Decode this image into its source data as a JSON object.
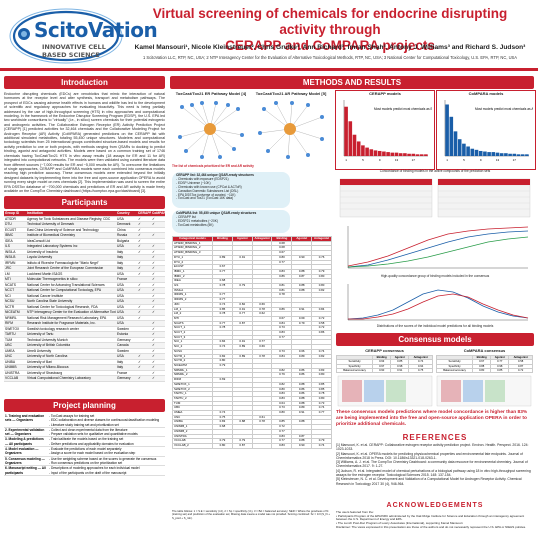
{
  "header": {
    "logo_name": "ScitoVation",
    "logo_tagline": "INNOVATIVE CELL BASED SCIENCE",
    "title_line1": "Virtual screening of chemicals for endocrine disrupting activity through",
    "title_line2": "CERAPP and CoMPARA projects",
    "authors": "Kamel Mansouri¹, Nicole Kleinstreuer², Chris Grulke³, Ann Richard³, Imran Shah³, Antony J. Williams³ and Richard S. Judson³",
    "affiliations": "1 ScitoVation LLC, RTP, NC, USA;  2 NTP Interagency Center for the Evaluation of Alternative Toxicological Methods, RTP, NC, USA;  3 National Center for Computational Toxicology, U.S. EPA, RTP, NC, USA"
  },
  "sections": {
    "intro": "Introduction",
    "participants": "Participants",
    "planning": "Project planning",
    "methods": "METHODS AND RESULTS",
    "consensus": "Consensus models",
    "references": "REFERENCES",
    "ack": "ACKNOWLEDGEMENTS"
  },
  "intro_text": "Endocrine disrupting chemicals (EDCs) are xenobiotics that mimic the interaction of natural hormones at the receptor level and alter synthesis, transport and metabolism pathways. The prospect of EDCs causing adverse health effects in humans and wildlife has led to the development of scientific and regulatory approaches for evaluating bioactivity. This need is being partially addressed by the use of high-throughput screening (HTS) in vitro approaches and computational modeling. In the framework of the Endocrine Disruptor Screening Program (EDSP), the U.S. EPA led two worldwide consortiums to \"virtually\" (i.e., in silico) screen chemicals for their potential estrogenic and androgenic activities. The Collaborative Estrogen Receptor (ER) Activity Prediction Project (CERAPP) [1] predicted activities for 32,464 chemicals and the Collaborative Modeling Project for Androgen Receptor (AR) Activity (CoMPARA) generated predictions on the CERAPP list with additional simulated metabolites, totaling 55,450 unique structures. Modelers and computational toxicology scientists from 25 international groups contributed structure-based models and results for activity prediction to one or both projects, with methods ranging from QSARs to docking to predict binding, agonist and antagonist activities. Models were based on a common training set of 1746 chemicals having ToxCast/Tox21 HTS in vitro assay results (18 assays for ER and 11 for AR) integrated into computational networks. The models were then validated using curated literature data from different sources (~7,000 results for ER and ~5,000 results for AR). To overcome the limitations of single approaches, CERAPP and CoMPARA models were each combined into consensus models reaching high predictive accuracy. These consensus models were extended beyond the initially designed datasets by implementing them into the free and open-source application OPERA to avoid running every single model on new chemicals [2]. This implementation was used to screen the entire EPA DSSTox database of ~700,000 chemicals and predictions of ER and AR activity is made freely available on the CompTox Chemistry dashboard (https://comptox.epa.gov/dashboard) [3].",
  "participants": {
    "headers": [
      "Group ID",
      "Institution",
      "Country",
      "CERAPP",
      "CoMPARA"
    ],
    "rows": [
      [
        "ATSDR",
        "Agency for Toxic Substances and Disease Registry, CDC",
        "USA",
        "✓",
        "✓"
      ],
      [
        "DTU",
        "Technical University of Denmark",
        "Denmark",
        "✓",
        "✓"
      ],
      [
        "ECUST",
        "East China University of Science and Technology",
        "China",
        "✓",
        ""
      ],
      [
        "IBMC",
        "Institute of Biomedical Chemistry",
        "Russia",
        "✓",
        "✓"
      ],
      [
        "IDEA",
        "IdeaConsult Ltd",
        "Bulgaria",
        "✓",
        ""
      ],
      [
        "ILS",
        "Integrated Laboratory Systems Inc",
        "USA",
        "✓",
        "✓"
      ],
      [
        "INSILA",
        "University of Insubria",
        "Italy",
        "✓",
        "✓"
      ],
      [
        "INSILB",
        "Loyola University",
        "Italy",
        "",
        "✓"
      ],
      [
        "IRFMN",
        "Istituto di Ricerche Farmacologiche \"Mario Negri\"",
        "Italy",
        "✓",
        "✓"
      ],
      [
        "JRC",
        "Joint Research Centre of the European Commission",
        "Italy",
        "✓",
        "✓"
      ],
      [
        "LM",
        "Lockheed Martin IS&GS",
        "USA",
        "✓",
        "✓"
      ],
      [
        "MTI",
        "Molecular Thermogenetics in silico",
        "France",
        "",
        "✓"
      ],
      [
        "NCATS",
        "National Center for Advancing Translational Sciences",
        "USA",
        "✓",
        "✓"
      ],
      [
        "NCCT",
        "National Center for Computational Toxicology, EPA",
        "USA",
        "✓",
        "✓"
      ],
      [
        "NCI",
        "National Cancer Institute",
        "USA",
        "",
        "✓"
      ],
      [
        "NCSU",
        "North Carolina State University",
        "USA",
        "",
        "✓"
      ],
      [
        "NCTR",
        "National Center for Toxicological Research, FDA",
        "USA",
        "✓",
        "✓"
      ],
      [
        "NICEATM",
        "NTP Interagency Center for the Evaluation of Alternative Toxicological Methods",
        "USA",
        "✓",
        "✓"
      ],
      [
        "NRMRL",
        "National Risk Management Research Laboratory, EPA",
        "USA",
        "✓",
        ""
      ],
      [
        "RIFM",
        "Research Institute for Fragrance Materials, Inc.",
        "USA",
        "",
        "✓"
      ],
      [
        "SWETOX",
        "Swedish toxicology research center",
        "Sweden",
        "",
        "✓"
      ],
      [
        "TARTU",
        "University of Tartu",
        "Estonia",
        "",
        "✓"
      ],
      [
        "TUM",
        "Technical University Munich",
        "Germany",
        "",
        "✓"
      ],
      [
        "UBC",
        "University of British Columbia",
        "Canada",
        "",
        "✓"
      ],
      [
        "UMEA",
        "Umeå University",
        "Sweden",
        "",
        "✓"
      ],
      [
        "UNC",
        "University of North Carolina",
        "USA",
        "✓",
        "✓"
      ],
      [
        "UNIBA",
        "University of Bari",
        "Italy",
        "✓",
        "✓"
      ],
      [
        "UNIMIB",
        "University of Milano-Bicocca",
        "Italy",
        "✓",
        "✓"
      ],
      [
        "UNISTRA",
        "University of Strasbourg",
        "France",
        "",
        "✓"
      ],
      [
        "VCCLAB",
        "Virtual Computational Chemistry Laboratory",
        "Germany",
        "✓",
        "✓"
      ]
    ]
  },
  "planning": {
    "headers": [
      "",
      ""
    ],
    "rows": [
      [
        "1. Training and evaluation sets — Organizers",
        "- ToxCast assays for training set<br>- EDC collaboration and diverse classes for continuous/classification modeling<br>- Literature study training set and prioritization set"
      ],
      [
        "2. Experimental validation set — Organizers",
        "- Collect and clean experimental data from the literature<br>- Prepare validation sets for qualitative and quantitative models"
      ],
      [
        "3. Modeling & predictions — All participants",
        "- Train/calibrate the models based on the training set<br>- Deliver predictions and applicability domains for evaluation"
      ],
      [
        "4. Model evaluation — Organizers",
        "- Evaluate the predictions of each model separately<br>- Assign a score for each model based on the evaluation step"
      ],
      [
        "5. Consensus modeling — Organizers",
        "- Use the weighting scheme based on the scores to generate the consensus<br>- Run consensus predictions on the prioritization set"
      ],
      [
        "6. Manuscript writing — All participants",
        "- Descriptions of modeling approaches for each individual model<br>- Input of the participants on the draft of the manuscript"
      ]
    ]
  },
  "methods": {
    "network_er_title": "ToxCast/Tox21 ER Pathway Model [4]",
    "network_ar_title": "ToxCast/Tox21 AR Pathway Model [5]",
    "network_caption": "The list of chemicals prioritized for ER and AR activity",
    "cerapp_list": [
      "CERAPP list: 32,464 unique QSAR-ready structures",
      "- Chemicals with exposure (EDSP21)",
      "- EDSP Universe (~10K)",
      "- Chemicals with known use (CPCat & ACToR)",
      "- Canadian Domestic Substances List (DSL)",
      "- EPA DSSTox (universe of curated, ~11K)",
      "- ToxCast and Tox21 (ToxCast 16K data)"
    ],
    "compara_list": [
      "CoMPARA list: 55,450 unique QSAR-ready structures",
      "- CERAPP list",
      "- EDSP21 metabolites (~20K)",
      "- ToxCast metabolites (5K)"
    ],
    "cat_headers": [
      "Categorical models",
      "Binding",
      "Agonist",
      "Antagonist",
      "Binding",
      "Agonist",
      "Antagonist"
    ],
    "cat_rows": [
      [
        "ATSDR_BINDING_1",
        "",
        "",
        "",
        "0.68",
        "",
        ""
      ],
      [
        "ATSDR_BINDING_2",
        "",
        "",
        "",
        "0.68",
        "",
        ""
      ],
      [
        "ATSDR_BINDING_3",
        "",
        "",
        "",
        "0.67",
        "",
        ""
      ],
      [
        "DTU_1",
        "0.89",
        "0.91",
        "",
        "0.80",
        "0.90",
        "0.76"
      ],
      [
        "DTU_2",
        "",
        "",
        "",
        "0.77",
        "",
        ""
      ],
      [
        "ECUST",
        "0.67",
        "",
        "",
        "",
        "",
        ""
      ],
      [
        "IBMC_1",
        "0.77",
        "",
        "",
        "0.83",
        "0.88",
        "0.79"
      ],
      [
        "IBMC_2",
        "",
        "",
        "",
        "0.86",
        "0.87",
        "0.80"
      ],
      [
        "IDEA",
        "0.68",
        "",
        "",
        "",
        "",
        ""
      ],
      [
        "ILS",
        "0.78",
        "0.79",
        "",
        "0.81",
        "0.88",
        "0.80"
      ],
      [
        "INSILA",
        "",
        "",
        "",
        "0.81",
        "0.88",
        "0.82"
      ],
      [
        "IRFMN_1",
        "0.77",
        "",
        "",
        "0.78",
        "",
        ""
      ],
      [
        "IRFMN_2",
        "0.77",
        "",
        "",
        "",
        "",
        ""
      ],
      [
        "JRC",
        "0.74",
        "0.82",
        "0.66",
        "",
        "",
        ""
      ],
      [
        "LM_1",
        "0.85",
        "0.91",
        "0.78",
        "0.86",
        "0.91",
        "0.84"
      ],
      [
        "LM_2",
        "0.78",
        "0.77",
        "0.62",
        "",
        "",
        ""
      ],
      [
        "MTI",
        "",
        "",
        "",
        "0.67",
        "0.69",
        "0.72"
      ],
      [
        "NCATS",
        "0.77",
        "0.87",
        "",
        "0.84",
        "0.79",
        "0.58"
      ],
      [
        "NCCT_1",
        "0.78",
        "",
        "",
        "0.73",
        "",
        "0.72"
      ],
      [
        "NCCT_2",
        "",
        "",
        "",
        "0.83",
        "",
        "0.86"
      ],
      [
        "NCCT_3",
        "",
        "",
        "",
        "0.77",
        "",
        ""
      ],
      [
        "NCI_1",
        "0.84",
        "0.91",
        "0.77",
        "",
        "",
        ""
      ],
      [
        "NCI_2",
        "0.74",
        "0.89",
        "0.66",
        "",
        "",
        ""
      ],
      [
        "NCSU",
        "",
        "",
        "",
        "0.73",
        "0.66",
        "0.74"
      ],
      [
        "NCTR_1",
        "0.82",
        "0.89",
        "0.78",
        "0.84",
        "0.89",
        "0.82"
      ],
      [
        "NCTR_2",
        "0.80",
        "",
        "",
        "",
        "",
        ""
      ],
      [
        "NICEATM",
        "0.79",
        "",
        "",
        "",
        "",
        ""
      ],
      [
        "NRMRL_1",
        "",
        "",
        "",
        "0.82",
        "0.86",
        "0.83"
      ],
      [
        "NRMRL_2",
        "",
        "",
        "",
        "0.79",
        "0.86",
        "0.80"
      ],
      [
        "RIFM",
        "0.69",
        "",
        "",
        "",
        "",
        ""
      ],
      [
        "SWETOX_1",
        "",
        "",
        "",
        "0.82",
        "0.88",
        "0.85"
      ],
      [
        "SWETOX_2",
        "",
        "",
        "",
        "0.80",
        "0.86",
        "0.85"
      ],
      [
        "TARTU_1",
        "",
        "",
        "",
        "0.83",
        "0.86",
        "0.78"
      ],
      [
        "TARTU_2",
        "",
        "",
        "",
        "0.83",
        "0.88",
        "0.80"
      ],
      [
        "TUM",
        "",
        "",
        "",
        "0.64",
        "0.88",
        "0.73"
      ],
      [
        "UBC",
        "",
        "",
        "",
        "0.73",
        "0.89",
        "0.74"
      ],
      [
        "UMEA",
        "0.74",
        "",
        "",
        "0.80",
        "0.91",
        "0.77"
      ],
      [
        "UNC",
        "0.75",
        "",
        "0.61",
        "",
        "",
        ""
      ],
      [
        "UNIBA",
        "0.83",
        "0.88",
        "0.78",
        "0.85",
        "0.88",
        ""
      ],
      [
        "UNIMIB_1",
        "0.68",
        "",
        "",
        "0.72",
        "",
        ""
      ],
      [
        "UNIMIB_2",
        "",
        "",
        "",
        "0.77",
        "",
        ""
      ],
      [
        "UNISTRA",
        "",
        "",
        "",
        "0.83",
        "0.87",
        ""
      ],
      [
        "VCCLAB",
        "0.79",
        "0.79",
        "",
        "0.77",
        "0.88",
        "0.79"
      ],
      [
        "VCCLAB_2",
        "0.80",
        "0.87",
        "",
        "0.83",
        "0.90",
        "0.74"
      ]
    ],
    "cat_footnote": "The table follows: 1 = S.E = sensitivity (×2), 2 = Sp = specificity (×1), 3 = BA = balanced accuracy; NER = Where the goodness of fit (training set) and prediction of the evaluation set; Missing data means a model was not provided. Scoring combined: Sc = 1/3 (S_fit + S_pred + S_rob).",
    "cerapp_hist_title": "CERAPP models",
    "compara_hist_title": "CoMPARA models",
    "hist_note_er": "Most models predict most chemicals as ER non-binders",
    "hist_note_ar": "Most models predict most chemicals as AR non-binders",
    "concordance_caption": "Concordance of binding models in the active compounds of the prediction sets",
    "chem_dist_caption": "Distributions of the number of models with positive predictions",
    "uncertainty_caption": "High-quality concordance group of binding models included in the consensus",
    "dist_caption": "Distributions of the scores of the individual model predictions for all binding models",
    "cerapp_pct_note": "57% of the chemicals predicted as binders"
  },
  "chart_data": [
    {
      "type": "bar",
      "title": "CERAPP models",
      "categories": [
        "1",
        "2",
        "3",
        "4",
        "5",
        "6",
        "7",
        "8",
        "9",
        "10",
        "11",
        "12",
        "13",
        "14",
        "15",
        "16",
        "17",
        "18",
        "19",
        "20"
      ],
      "values": [
        88,
        62,
        38,
        26,
        19,
        15,
        12,
        10,
        9,
        8,
        7,
        6,
        6,
        5,
        5,
        4,
        4,
        3,
        3,
        3
      ],
      "ylim": [
        0,
        100
      ]
    },
    {
      "type": "bar",
      "title": "CoMPARA models",
      "categories": [
        "1",
        "2",
        "3",
        "4",
        "5",
        "6",
        "7",
        "8",
        "9",
        "10",
        "11",
        "12",
        "13",
        "14",
        "15",
        "16",
        "17",
        "18",
        "19",
        "20"
      ],
      "values": [
        92,
        70,
        44,
        30,
        22,
        17,
        13,
        11,
        9,
        8,
        7,
        7,
        6,
        5,
        5,
        4,
        4,
        3,
        3,
        3
      ],
      "ylim": [
        0,
        100
      ]
    }
  ],
  "consensus": {
    "cerapp_title": "CERAPP consensus",
    "compara_title": "CoMPARA consensus",
    "cerapp_headers": [
      "",
      "Binding",
      "Agonist",
      "Antagonist"
    ],
    "cerapp_rows": [
      [
        "Sensitivity",
        "0.93",
        "0.85",
        "0.74"
      ],
      [
        "Specificity",
        "0.97",
        "0.98",
        "0.94"
      ],
      [
        "Balanced accuracy",
        "0.90",
        "0.91",
        "0.75"
      ]
    ],
    "compara_headers": [
      "",
      "Binding",
      "Agonist",
      "Antagonist"
    ],
    "compara_rows": [
      [
        "Sensitivity",
        "0.67",
        "0.77",
        "0.58"
      ],
      [
        "Specificity",
        "0.88",
        "0.98",
        "0.87"
      ],
      [
        "Balanced accuracy",
        "0.80",
        "0.85",
        "0.72"
      ]
    ],
    "summary": "These consensus models predictions where model concordance is higher than 83% are being implemented into the free and open-source application OPERA in order to prioritize additional chemicals."
  },
  "references": [
    "[1] Mansouri, K. et al. CERAPP: Collaborative estrogen receptor activity prediction project. Environ. Health. Perspect. 2016. 124: 1023-1033.",
    "[2] Mansouri, K. et al. OPERA models for predicting physicochemical properties and environmental fate endpoints. Journal of Cheminformatics 2018 In Press. DOI: 10.1186/s13321-018-0263-1.",
    "[3] Williams, A. J. et al. The CompTox Chemistry Dashboard: a community data resource for environmental chemistry. Journal of Cheminformatics 2017. 9: 1-27.",
    "[4] Judson, R. et al. Integrated model of chemical perturbations of a biological pathway using 18 in vitro high-throughput screening assays for the estrogen receptor. Toxicological Sciences 2015. 148: 137-154.",
    "[5] Kleinstreuer, N. C. et al. Development and Validation of a Computational Model for Androgen Receptor Activity. Chemical Research in Toxicology 2017 30 (4), 946-964."
  ],
  "ack": [
    "The users featured from the:",
    "• Participants Program of the EPA/NRC administered by the Oak Ridge Institute for Science and Education through an interagency agreement between the U.S. Department of Energy and EPA.",
    "• The Lunch Post-Doc Program of Lowry Associates (International), supporting Kamel Mansouri.",
    "Disclaimer: The views expressed in this presentation are those of the authors and do not necessarily represent the U.S. EPA or NIEHS policies."
  ],
  "colors": {
    "accent": "#c8202f",
    "brand_blue": "#1a5ea8"
  }
}
